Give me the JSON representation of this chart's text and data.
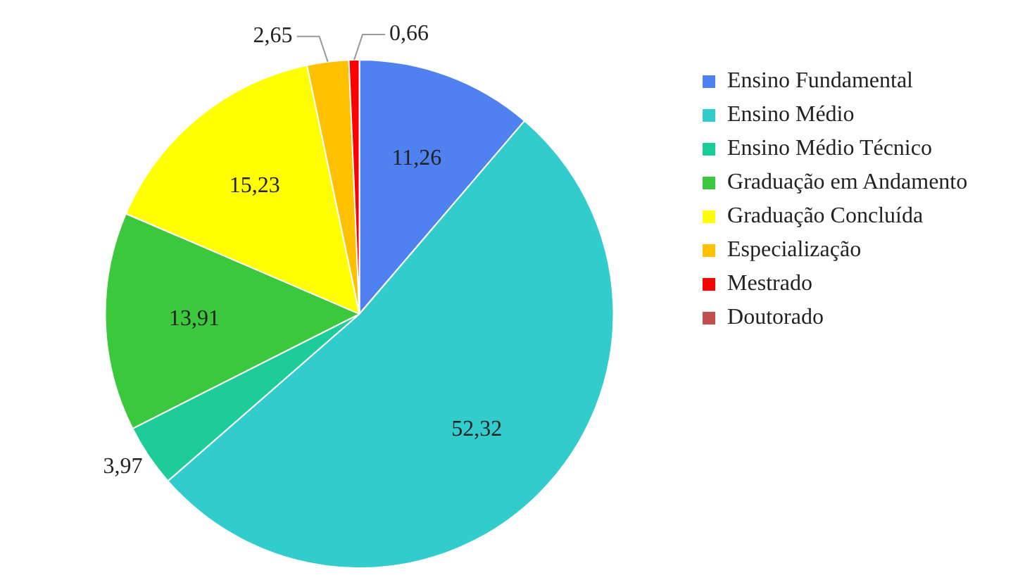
{
  "chart_data": {
    "type": "pie",
    "categories": [
      "Ensino Fundamental",
      "Ensino Médio",
      "Ensino Médio Técnico",
      "Graduação em Andamento",
      "Graduação Concluída",
      "Especialização",
      "Mestrado",
      "Doutorado"
    ],
    "values": [
      11.26,
      52.32,
      3.97,
      13.91,
      15.23,
      2.65,
      0.66,
      0
    ],
    "colors": [
      "#4f81f0",
      "#33cccc",
      "#1dcc99",
      "#3cc83c",
      "#ffff00",
      "#ffc000",
      "#ff0000",
      "#c0504d"
    ],
    "value_labels": [
      "11,26",
      "52,32",
      "3,97",
      "13,91",
      "15,23",
      "2,65",
      "0,66",
      null
    ],
    "legend": "right"
  }
}
